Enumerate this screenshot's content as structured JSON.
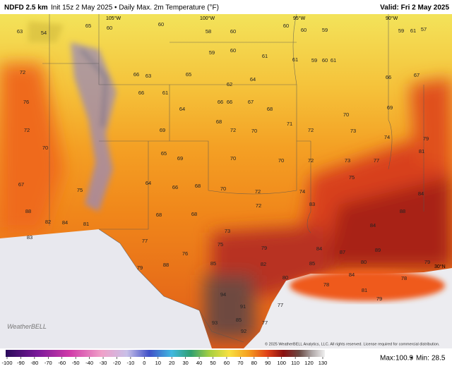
{
  "header": {
    "model": "NDFD 2.5 km",
    "description": "Init 15z 2 May 2025 • Daily Max. 2m Temperature (°F)",
    "valid": "Valid: Fri 2 May 2025"
  },
  "map_labels": {
    "lon_105": "105°W",
    "lon_100": "100°W",
    "lon_95": "95°W",
    "lon_90": "90°W",
    "lat_30": "30°N"
  },
  "temperatures": [
    63,
    54,
    65,
    60,
    60,
    58,
    60,
    60,
    60,
    59,
    59,
    61,
    57,
    59,
    60,
    61,
    61,
    59,
    60,
    61,
    72,
    66,
    63,
    65,
    62,
    64,
    66,
    67,
    76,
    66,
    61,
    64,
    66,
    66,
    67,
    68,
    70,
    69,
    72,
    69,
    68,
    72,
    70,
    71,
    72,
    73,
    74,
    79,
    70,
    65,
    69,
    70,
    70,
    72,
    73,
    77,
    81,
    67,
    75,
    64,
    66,
    68,
    70,
    72,
    74,
    75,
    84,
    88,
    82,
    84,
    81,
    68,
    68,
    73,
    72,
    83,
    84,
    88,
    83,
    77,
    76,
    75,
    79,
    84,
    87,
    89,
    80,
    79,
    79,
    88,
    85,
    82,
    80,
    85,
    78,
    84,
    78,
    94,
    91,
    77,
    81,
    79,
    93,
    92,
    77,
    85
  ],
  "colorbar": {
    "ticks": [
      -100,
      -90,
      -80,
      -70,
      -60,
      -50,
      -40,
      -30,
      -20,
      -10,
      0,
      10,
      20,
      30,
      40,
      50,
      60,
      70,
      80,
      90,
      100,
      110,
      120,
      130
    ]
  },
  "stats": {
    "max_label": "Max:",
    "max": 100.9,
    "separator": "•",
    "min_label": "Min:",
    "min": 28.5
  },
  "copyright": "© 2025 WeatherBELL Analytics, LLC. All rights reserved. License required for commercial distribution.",
  "logo": "WeatherBELL"
}
